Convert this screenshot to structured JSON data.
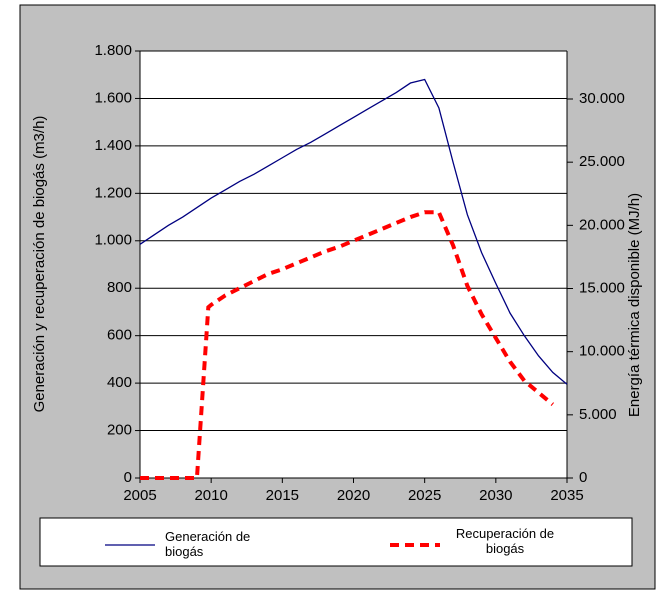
{
  "chart_data": {
    "type": "line",
    "y_label": "Generación y recuperación de biogás (m3/h)",
    "y2_label": "Energía térmica disponible (MJ/h)",
    "xlim": [
      2005,
      2035
    ],
    "xticks": [
      2005,
      2010,
      2015,
      2020,
      2025,
      2030,
      2035
    ],
    "ylim": [
      0,
      1800
    ],
    "yticks": [
      0,
      200,
      400,
      600,
      800,
      {
        "value": 1000,
        "label": "1.000"
      },
      {
        "value": 1200,
        "label": "1.200"
      },
      {
        "value": 1400,
        "label": "1.400"
      },
      {
        "value": 1600,
        "label": "1.600"
      },
      {
        "value": 1800,
        "label": "1.800"
      }
    ],
    "y2lim": [
      0,
      33800
    ],
    "y2ticks": [
      0,
      {
        "value": 5000,
        "label": "5.000"
      },
      {
        "value": 10000,
        "label": "10.000"
      },
      {
        "value": 15000,
        "label": "15.000"
      },
      {
        "value": 20000,
        "label": "20.000"
      },
      {
        "value": 25000,
        "label": "25.000"
      },
      {
        "value": 30000,
        "label": "30.000"
      }
    ],
    "grid": true,
    "series": [
      {
        "name": "Generación de biogás",
        "color": "#000080",
        "dash": false,
        "x": [
          2005,
          2006,
          2007,
          2008,
          2009,
          2010,
          2011,
          2012,
          2013,
          2014,
          2015,
          2016,
          2017,
          2018,
          2019,
          2020,
          2021,
          2022,
          2023,
          2024,
          2025,
          2026,
          2027,
          2028,
          2029,
          2030,
          2031,
          2032,
          2033,
          2034,
          2035
        ],
        "values": [
          985,
          1025,
          1065,
          1100,
          1140,
          1180,
          1215,
          1250,
          1280,
          1315,
          1350,
          1385,
          1415,
          1450,
          1485,
          1520,
          1555,
          1590,
          1625,
          1665,
          1680,
          1560,
          1330,
          1110,
          950,
          820,
          695,
          600,
          515,
          445,
          395
        ]
      },
      {
        "name": "Recuperación de biogás",
        "color": "#ff0000",
        "dash": true,
        "x": [
          2005,
          2006,
          2007,
          2008,
          2009,
          2009.8,
          2010,
          2011,
          2012,
          2013,
          2014,
          2015,
          2016,
          2017,
          2018,
          2019,
          2020,
          2021,
          2022,
          2023,
          2024,
          2025,
          2026,
          2027,
          2028,
          2029,
          2030,
          2031,
          2032,
          2033,
          2034
        ],
        "values": [
          0,
          0,
          0,
          0,
          0,
          720,
          730,
          770,
          800,
          830,
          860,
          880,
          905,
          930,
          955,
          975,
          1000,
          1025,
          1050,
          1075,
          1100,
          1120,
          1120,
          980,
          810,
          690,
          590,
          490,
          410,
          360,
          310
        ]
      }
    ]
  }
}
